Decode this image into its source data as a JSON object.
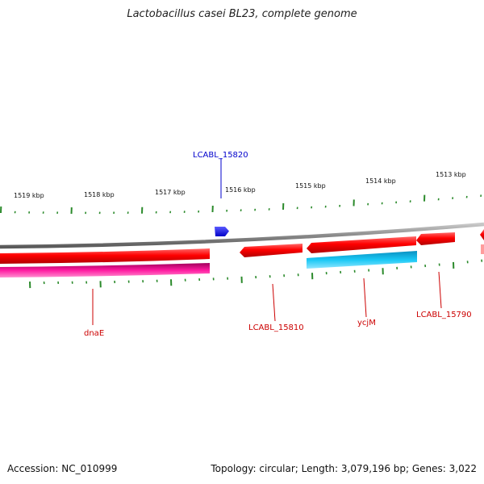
{
  "title": "Lactobacillus casei BL23, complete genome",
  "footer": {
    "accession": "Accession: NC_010999",
    "stats": "Topology: circular; Length: 3,079,196 bp; Genes: 3,022"
  },
  "ticks": [
    {
      "label": "1519 kbp"
    },
    {
      "label": "1518 kbp"
    },
    {
      "label": "1517 kbp"
    },
    {
      "label": "1516 kbp"
    },
    {
      "label": "1515 kbp"
    },
    {
      "label": "1514 kbp"
    },
    {
      "label": "1513 kbp"
    }
  ],
  "genes": [
    {
      "label": "LCABL_15820",
      "strand": "forward",
      "color": "#0000ff"
    },
    {
      "label": "dnaE",
      "strand": "reverse",
      "color": "#ff0000"
    },
    {
      "label": "LCABL_15810",
      "strand": "reverse",
      "color": "#ff0000"
    },
    {
      "label": "ycjM",
      "strand": "reverse",
      "color": "#ff0000"
    },
    {
      "label": "LCABL_15790",
      "strand": "reverse",
      "color": "#ff0000"
    }
  ],
  "colors": {
    "backbone": "#8a8a8a",
    "cds_reverse": "#ff0000",
    "cds_forward": "#0000ff",
    "feature_pink": "#ff1aa0",
    "feature_cyan": "#19c8f5",
    "tick": "#2b8a2b",
    "label_forward": "#0000cc",
    "label_reverse": "#cc0000"
  }
}
